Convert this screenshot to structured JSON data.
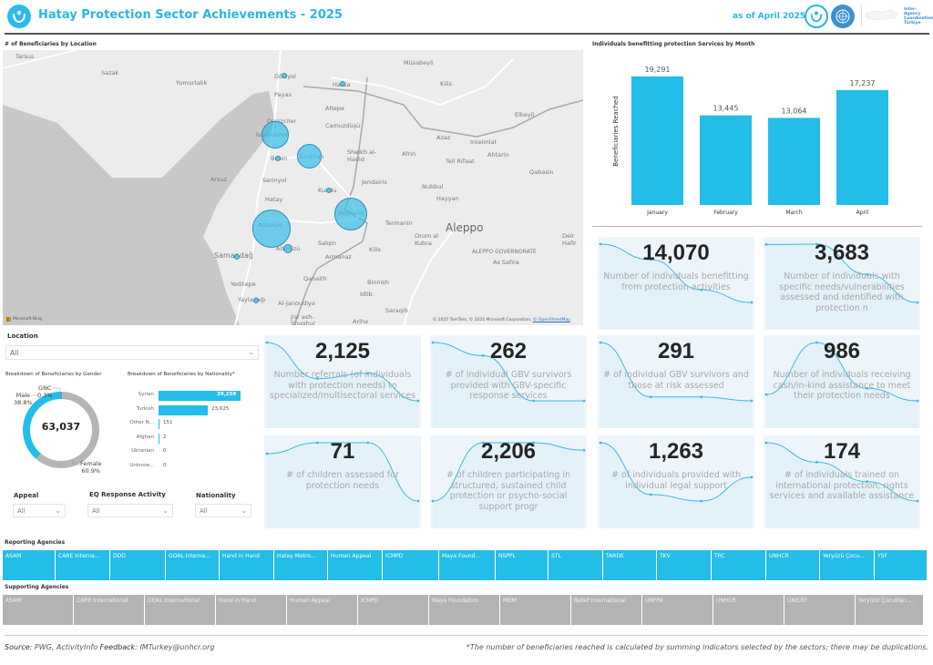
{
  "header": {
    "title": "Hatay Protection Sector Achievements - 2025",
    "as_of": "as of April 2025",
    "iac_text": "Inter-Agency Coordination Türkiye"
  },
  "map": {
    "title": "# of Beneficiaries by Location",
    "credit": "© 2025 TomTom, © 2025 Microsoft Corporation, ",
    "credit_link": "© OpenStreetMap",
    "bing_label": "Microsoft Bing",
    "labels": [
      "Tarsus",
      "Sazak",
      "Yumurtalık",
      "Dörtyol",
      "Payas",
      "Hassa",
      "Müsabeyli",
      "Kilis",
      "Altepe",
      "Camuzdüşü",
      "Denizciler",
      "İskenderun",
      "Belen",
      "Kırıkhan",
      "Sheikh al-Hadid",
      "Afrin",
      "Azaz",
      "Inteimlat",
      "Ahtarin",
      "Elbeyli",
      "Arsuz",
      "Serinyol",
      "Kumlu",
      "Jendairis",
      "Tell Rifaat",
      "Nubbul",
      "Hayyan",
      "Qabasin",
      "Hatay",
      "Antakya",
      "Reyhanlı",
      "Termanin",
      "Aleppo",
      "Altınözü",
      "Samandağ",
      "Salqin",
      "Armanaz",
      "Kilis",
      "Orum al Kubra",
      "ALEPPO GOVERNORATE",
      "As Safira",
      "Deir Hafir",
      "Yeditepe",
      "Yayladağı",
      "Al-Janoudiya",
      "Qanaith",
      "Binnish",
      "Idlib",
      "Saraqib",
      "Ariha",
      "Jisr ash-Shughur"
    ],
    "bubbles": [
      {
        "location": "Antakya",
        "size": "large"
      },
      {
        "location": "İskenderun",
        "size": "large"
      },
      {
        "location": "Reyhanlı",
        "size": "large"
      },
      {
        "location": "Kırıkhan",
        "size": "medium"
      },
      {
        "location": "Dörtyol",
        "size": "small"
      },
      {
        "location": "Hassa",
        "size": "small"
      },
      {
        "location": "Belen",
        "size": "small"
      },
      {
        "location": "Kumlu",
        "size": "small"
      },
      {
        "location": "Altınözü",
        "size": "small"
      },
      {
        "location": "Samandağ",
        "size": "small"
      },
      {
        "location": "Yayladağı",
        "size": "small"
      }
    ]
  },
  "chart_data": [
    {
      "type": "bar",
      "title": "Individuals benefitting protection Services by Month",
      "categories": [
        "January",
        "February",
        "March",
        "April"
      ],
      "values": [
        19291,
        13445,
        13064,
        17237
      ],
      "value_labels": [
        "19,291",
        "13,445",
        "13,064",
        "17,237"
      ],
      "xlabel": "",
      "ylabel": "Beneficiaries Reached",
      "ylim": [
        0,
        20500
      ],
      "color": "#23bde8",
      "grid": false
    },
    {
      "type": "pie",
      "title": "Breakdown of Beneficiaries by Gender",
      "center_label": "63,037",
      "categories": [
        "Female",
        "Male",
        "GNC"
      ],
      "values": [
        60.9,
        38.8,
        0.3
      ],
      "labels": [
        "60.9%",
        "38.8%",
        "0.3%"
      ],
      "colors": [
        "#b5b5b5",
        "#23bde8",
        "#1b6fa0"
      ]
    },
    {
      "type": "bar",
      "orientation": "horizontal",
      "title": "Breakdown of Beneficiaries by Nationality*",
      "categories": [
        "Syrian",
        "Turkish",
        "Other N...",
        "Afghan",
        "Ukranian",
        "Unknow..."
      ],
      "values": [
        39259,
        23625,
        151,
        2,
        0,
        0
      ],
      "value_labels": [
        "39,259",
        "23,625",
        "151",
        "2",
        "0",
        "0"
      ],
      "color": "#23bde8"
    }
  ],
  "kpis": [
    {
      "value": "14,070",
      "label": "Number of individuals benefitting from protection activities",
      "trend": [
        19291,
        17900,
        15200,
        14070
      ]
    },
    {
      "value": "3,683",
      "label": "Number of individuals with specific needs/vulnerabilities assessed and identified with protection n",
      "trend": [
        4400,
        4420,
        2800,
        1300
      ]
    },
    {
      "value": "2,125",
      "label": "Number referrals (of individuals with protection needs) to specialized/multisectoral services",
      "trend": [
        900,
        560,
        610,
        350
      ]
    },
    {
      "value": "262",
      "label": "# of individual GBV survivors provided with GBV-specific response services",
      "trend": [
        100,
        82,
        20,
        20
      ]
    },
    {
      "value": "291",
      "label": "# of individual GBV survivors and those at risk assessed",
      "trend": [
        120,
        50,
        50,
        45
      ]
    },
    {
      "value": "986",
      "label": "Number of individuals receiving cash/in-kind assistance to meet their protection needs",
      "trend": [
        150,
        400,
        180,
        120
      ]
    },
    {
      "value": "71",
      "label": "# of children assessed for protection needs",
      "trend": [
        25,
        28,
        28,
        12
      ]
    },
    {
      "value": "2,206",
      "label": "# of children participating in structured, sustained child protection or psycho-social support progr",
      "trend": [
        250,
        720,
        720,
        660
      ]
    },
    {
      "value": "1,263",
      "label": "# of individuals provided with individual legal support",
      "trend": [
        420,
        300,
        285,
        340
      ]
    },
    {
      "value": "174",
      "label": "# of individuals trained on international protection, rights services and available assistance",
      "trend": [
        80,
        60,
        40,
        20
      ]
    }
  ],
  "filters": {
    "location": {
      "label": "Location",
      "value": "All"
    },
    "appeal": {
      "label": "Appeal",
      "value": "All"
    },
    "eq_activity": {
      "label": "EQ Response Activity",
      "value": "All"
    },
    "nationality": {
      "label": "Nationality",
      "value": "All"
    }
  },
  "reporting_agencies": {
    "label": "Reporting Agencies",
    "items": [
      "ASAM",
      "CARE Interna...",
      "DDD",
      "GOAL Interna...",
      "Hand in Hand",
      "Hatay Metro...",
      "Human Appeal",
      "ICMPD",
      "Maya Found...",
      "NSPPL",
      "STL",
      "TARDE",
      "TKV",
      "TRC",
      "UNHCR",
      "Yeryüzü Çocu...",
      "YSF"
    ]
  },
  "supporting_agencies": {
    "label": "Supporting Agencies",
    "items": [
      "ASAM",
      "CARE International",
      "GOAL International",
      "Hand in Hand",
      "Human Appeal",
      "ICMPD",
      "Maya Foundation",
      "MDM",
      "Relief International",
      "UNFPA",
      "UNHCR",
      "UNICEF",
      "Yeryüzü Çocukları ..."
    ]
  },
  "footer": {
    "source_label": "Source",
    "source": ": PWG, ActivityInfo  ",
    "feedback_label": "Feedback",
    "feedback": ": IMTurkey@unhcr.org",
    "note": "*The number of beneficiaries reached is calculated by summing indicators selected by the sectors; there may be duplications."
  }
}
